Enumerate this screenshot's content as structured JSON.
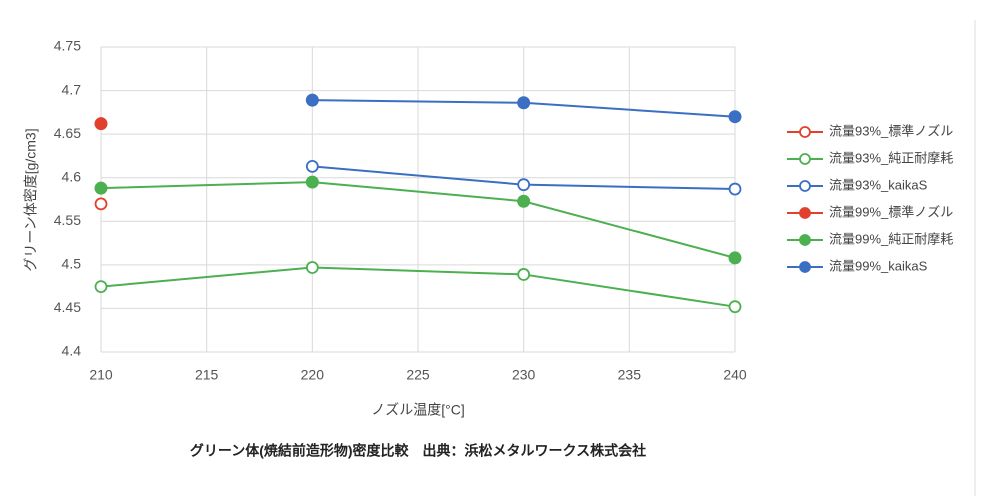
{
  "chart_data": {
    "type": "line",
    "title": "グリーン体(焼結前造形物)密度比較　出典：浜松メタルワークス株式会社",
    "x_label": "ノズル温度[°C]",
    "y_label": "グリーン体密度[g/cm3]",
    "x": [
      210,
      220,
      230,
      240
    ],
    "xlim": [
      210,
      240
    ],
    "xticks": [
      210,
      215,
      220,
      225,
      230,
      235,
      240
    ],
    "ylim": [
      4.4,
      4.75
    ],
    "yticks": [
      4.4,
      4.45,
      4.5,
      4.55,
      4.6,
      4.65,
      4.7,
      4.75
    ],
    "grid": true,
    "legend": "right",
    "series": [
      {
        "name": "流量93%_標準ノズル",
        "color": "#e0402c",
        "marker": "open",
        "values": [
          4.57,
          null,
          null,
          null
        ]
      },
      {
        "name": "流量93%_純正耐摩耗",
        "color": "#4caf50",
        "marker": "open",
        "values": [
          4.475,
          4.497,
          4.489,
          4.452
        ]
      },
      {
        "name": "流量93%_kaikaS",
        "color": "#3a6fc4",
        "marker": "open",
        "values": [
          null,
          4.613,
          4.592,
          4.587
        ]
      },
      {
        "name": "流量99%_標準ノズル",
        "color": "#e0402c",
        "marker": "filled",
        "values": [
          4.662,
          null,
          null,
          null
        ]
      },
      {
        "name": "流量99%_純正耐摩耗",
        "color": "#4caf50",
        "marker": "filled",
        "values": [
          4.588,
          4.595,
          4.573,
          4.508
        ]
      },
      {
        "name": "流量99%_kaikaS",
        "color": "#3a6fc4",
        "marker": "filled",
        "values": [
          null,
          4.689,
          4.686,
          4.67
        ]
      }
    ]
  }
}
